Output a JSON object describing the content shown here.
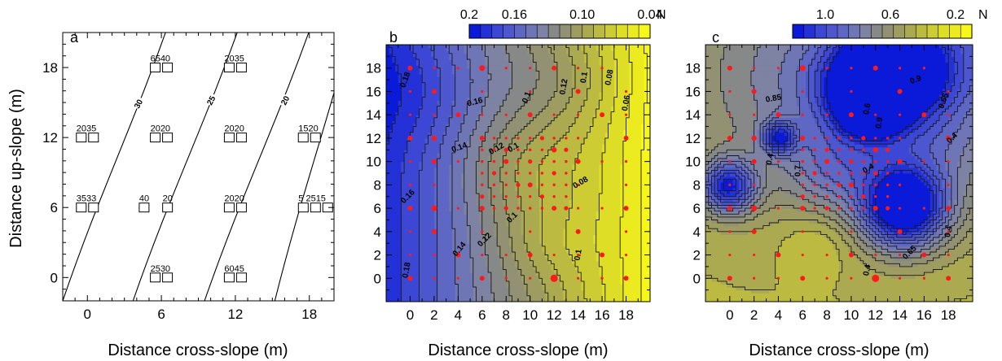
{
  "chart_data": [
    {
      "type": "contour",
      "panel_label": "a",
      "xlabel": "Distance cross-slope (m)",
      "ylabel": "Distance up-slope (m)",
      "xticks": [
        "0",
        "6",
        "12",
        "18"
      ],
      "yticks": [
        "0",
        "6",
        "12",
        "18"
      ],
      "xlim": [
        -2,
        20
      ],
      "ylim": [
        -2,
        21
      ],
      "contour_labels": [
        "30",
        "25",
        "20"
      ],
      "plots": [
        {
          "label": "6540",
          "x": 6,
          "y": 18,
          "boxes": 2
        },
        {
          "label": "2035",
          "x": 12,
          "y": 18,
          "boxes": 2
        },
        {
          "label": "2035",
          "x": 0,
          "y": 12,
          "boxes": 2
        },
        {
          "label": "2020",
          "x": 6,
          "y": 12,
          "boxes": 2
        },
        {
          "label": "2020",
          "x": 12,
          "y": 12,
          "boxes": 2
        },
        {
          "label": "1520",
          "x": 18,
          "y": 12,
          "boxes": 2
        },
        {
          "label": "3533",
          "x": 0,
          "y": 6,
          "boxes": 2
        },
        {
          "label": "40",
          "x": 4.6,
          "y": 6,
          "boxes": 1
        },
        {
          "label": "20",
          "x": 6.5,
          "y": 6,
          "boxes": 1
        },
        {
          "label": "2020",
          "x": 12,
          "y": 6,
          "boxes": 2
        },
        {
          "label": "5 2515",
          "x": 18.5,
          "y": 6,
          "boxes": 3
        },
        {
          "label": "2530",
          "x": 6,
          "y": 0,
          "boxes": 2
        },
        {
          "label": "6045",
          "x": 12,
          "y": 0,
          "boxes": 2
        }
      ]
    },
    {
      "type": "heatmap",
      "panel_label": "b",
      "xlabel": "Distance cross-slope (m)",
      "xticks": [
        "0",
        "2",
        "4",
        "6",
        "8",
        "10",
        "12",
        "14",
        "16",
        "18"
      ],
      "yticks": [
        "0",
        "2",
        "4",
        "6",
        "8",
        "10",
        "12",
        "14",
        "16",
        "18"
      ],
      "xlim": [
        -2,
        20
      ],
      "ylim": [
        -2,
        20
      ],
      "colorbar_ticks": [
        "0.2",
        "0.16",
        "0.10",
        "0.04"
      ],
      "colorbar_unit": "N",
      "colorbar_range": [
        0.2,
        0.04
      ],
      "contour_labels": [
        "0.18",
        "0.16",
        "0.14",
        "0.12",
        "0.1",
        "0.08",
        "0.06"
      ]
    },
    {
      "type": "heatmap",
      "panel_label": "c",
      "xlabel": "Distance cross-slope (m)",
      "xticks": [
        "0",
        "2",
        "4",
        "6",
        "8",
        "10",
        "12",
        "14",
        "16",
        "18"
      ],
      "yticks": [
        "0",
        "2",
        "4",
        "6",
        "8",
        "10",
        "12",
        "14",
        "16",
        "18"
      ],
      "xlim": [
        -2,
        20
      ],
      "ylim": [
        -2,
        20
      ],
      "colorbar_ticks": [
        "1.0",
        "0.6",
        "0.2"
      ],
      "colorbar_unit": "N",
      "colorbar_range": [
        1.2,
        0.1
      ],
      "contour_labels": [
        "0.9",
        "0.85",
        "0.65",
        "0.4",
        "0.7",
        "0.6",
        "0.55"
      ]
    }
  ],
  "colors": {
    "cmap": [
      "#0b1ad9",
      "#3a46d6",
      "#5a63c8",
      "#7a7fad",
      "#8c8c7c",
      "#a2a05a",
      "#c0be3c",
      "#e0e024",
      "#f7f71a"
    ],
    "points": "#ff1a1a"
  }
}
